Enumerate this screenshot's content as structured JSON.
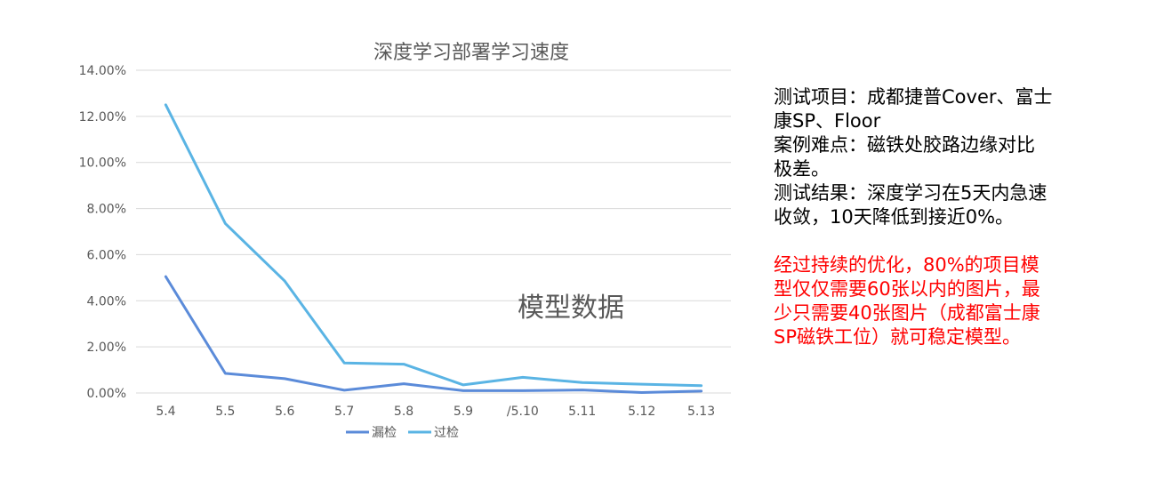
{
  "chart_data": {
    "type": "line",
    "title": "深度学习部署学习速度",
    "categories": [
      "5.4",
      "5.5",
      "5.6",
      "5.7",
      "5.8",
      "5.9",
      "/5.10",
      "5.11",
      "5.12",
      "5.13"
    ],
    "series": [
      {
        "name": "漏检",
        "color": "#5b8bd9",
        "values": [
          5.05,
          0.85,
          0.62,
          0.12,
          0.4,
          0.1,
          0.1,
          0.13,
          0.02,
          0.08
        ]
      },
      {
        "name": "过检",
        "color": "#5ab4e4",
        "values": [
          12.5,
          7.35,
          4.85,
          1.3,
          1.25,
          0.35,
          0.68,
          0.45,
          0.38,
          0.32
        ]
      }
    ],
    "ylim": [
      0,
      14
    ],
    "yticks": [
      "0.00%",
      "2.00%",
      "4.00%",
      "6.00%",
      "8.00%",
      "10.00%",
      "12.00%",
      "14.00%"
    ],
    "grid": true,
    "legend_position": "bottom",
    "annotation": "模型数据"
  },
  "notes": {
    "black_lines": [
      "测试项目：成都捷普Cover、富士",
      "康SP、Floor",
      "案例难点：磁铁处胶路边缘对比",
      "极差。",
      "测试结果：深度学习在5天内急速",
      "收敛，10天降低到接近0%。"
    ],
    "red_lines": [
      "经过持续的优化，80%的项目模",
      "型仅仅需要60张以内的图片，最",
      "少只需要40张图片（成都富士康",
      "SP磁铁工位）就可稳定模型。"
    ]
  }
}
